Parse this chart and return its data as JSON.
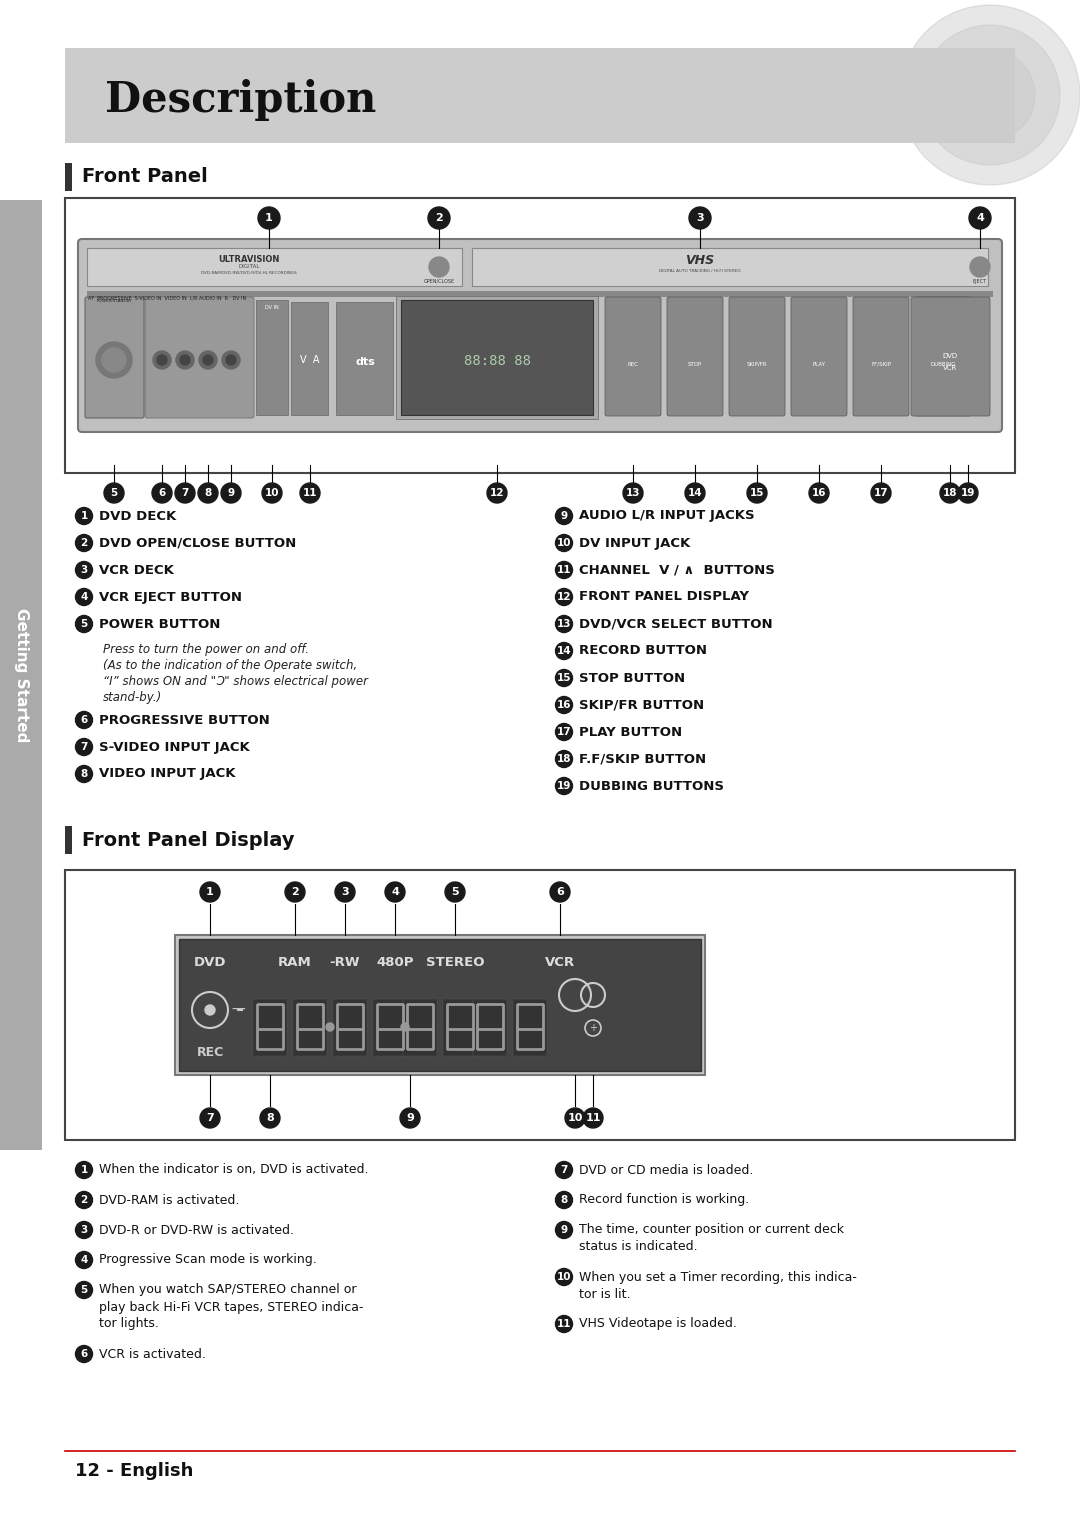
{
  "title": "Description",
  "page_bg": "#ffffff",
  "title_bg": "#cccccc",
  "section1": "Front Panel",
  "section2": "Front Panel Display",
  "sidebar_text": "Getting Started",
  "fp_items_left": [
    [
      "1",
      "DVD DECK"
    ],
    [
      "2",
      "DVD OPEN/CLOSE BUTTON"
    ],
    [
      "3",
      "VCR DECK"
    ],
    [
      "4",
      "VCR EJECT BUTTON"
    ],
    [
      "5",
      "POWER BUTTON"
    ]
  ],
  "fp_items_left_extra": [
    "Press to turn the power on and off.",
    "(As to the indication of the Operate switch,",
    "“I” shows ON and \"Ɔ\" shows electrical power",
    "stand-by.)"
  ],
  "fp_items_left2": [
    [
      "6",
      "PROGRESSIVE BUTTON"
    ],
    [
      "7",
      "S-VIDEO INPUT JACK"
    ],
    [
      "8",
      "VIDEO INPUT JACK"
    ]
  ],
  "fp_items_right": [
    [
      "9",
      "AUDIO L/R INPUT JACKS"
    ],
    [
      "10",
      "DV INPUT JACK"
    ],
    [
      "11",
      "CHANNEL  V / ∧  BUTTONS"
    ],
    [
      "12",
      "FRONT PANEL DISPLAY"
    ],
    [
      "13",
      "DVD/VCR SELECT BUTTON"
    ],
    [
      "14",
      "RECORD BUTTON"
    ],
    [
      "15",
      "STOP BUTTON"
    ],
    [
      "16",
      "SKIP/FR BUTTON"
    ],
    [
      "17",
      "PLAY BUTTON"
    ],
    [
      "18",
      "F.F/SKIP BUTTON"
    ],
    [
      "19",
      "DUBBING BUTTONS"
    ]
  ],
  "disp_items_left": [
    [
      "1",
      "When the indicator is on, DVD is activated."
    ],
    [
      "2",
      "DVD-RAM is activated."
    ],
    [
      "3",
      "DVD-R or DVD-RW is activated."
    ],
    [
      "4",
      "Progressive Scan mode is working."
    ],
    [
      "5",
      "When you watch SAP/STEREO channel or\nplay back Hi-Fi VCR tapes, STEREO indica-\ntor lights."
    ],
    [
      "6",
      "VCR is activated."
    ]
  ],
  "disp_items_right": [
    [
      "7",
      "DVD or CD media is loaded."
    ],
    [
      "8",
      "Record function is working."
    ],
    [
      "9",
      "The time, counter position or current deck\nstatus is indicated."
    ],
    [
      "10",
      "When you set a Timer recording, this indica-\ntor is lit."
    ],
    [
      "11",
      "VHS Videotape is loaded."
    ]
  ],
  "page_number": "12 - English"
}
